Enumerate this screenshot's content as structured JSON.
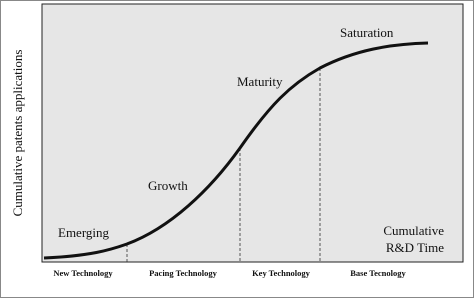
{
  "y_axis_label": "Cumulative patents applications",
  "stages": [
    "Emerging",
    "Growth",
    "Maturity",
    "Saturation"
  ],
  "time_label": [
    "Cumulative",
    "R&D Time"
  ],
  "phases": [
    "New Technology",
    "Pacing Technology",
    "Key Technology",
    "Base Tecnology"
  ]
}
